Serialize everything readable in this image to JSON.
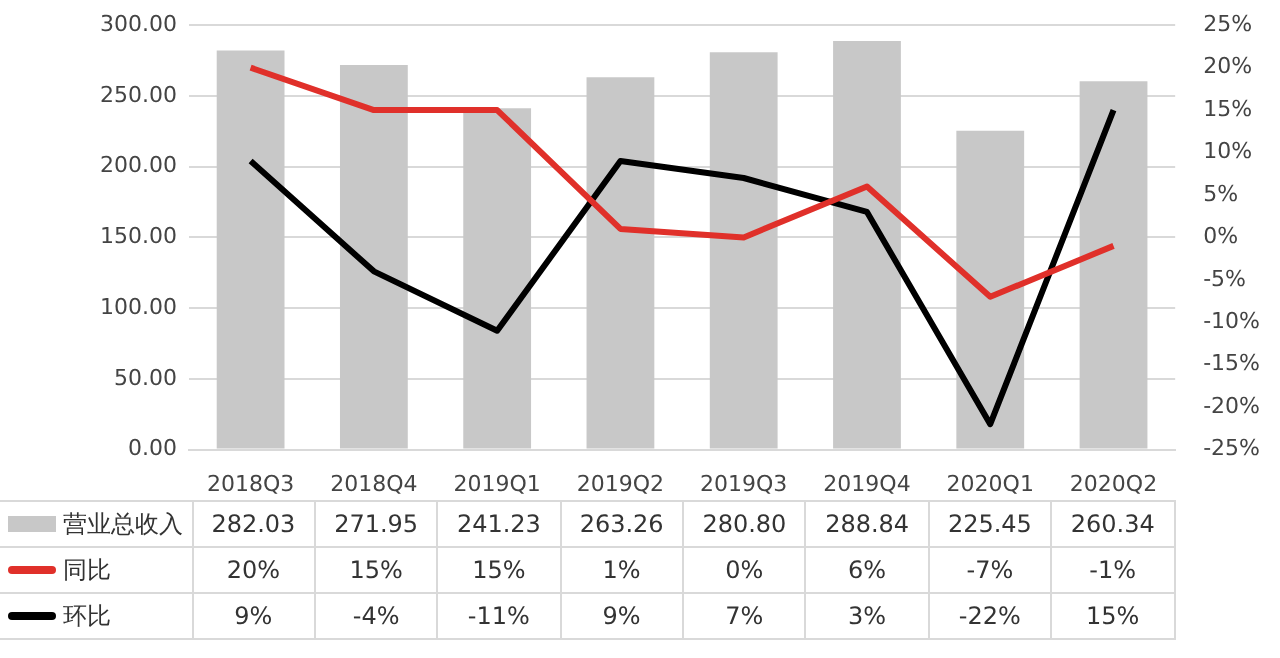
{
  "chart_data": {
    "type": "bar",
    "categories": [
      "2018Q3",
      "2018Q4",
      "2019Q1",
      "2019Q2",
      "2019Q3",
      "2019Q4",
      "2020Q1",
      "2020Q2"
    ],
    "series": [
      {
        "name": "营业总收入",
        "color": "#c8c8c8",
        "values": [
          282.03,
          271.95,
          241.23,
          263.26,
          280.8,
          288.84,
          225.45,
          260.34
        ],
        "value_labels": [
          "282.03",
          "271.95",
          "241.23",
          "263.26",
          "280.80",
          "288.84",
          "225.45",
          "260.34"
        ]
      },
      {
        "name": "同比",
        "type": "line",
        "axis": "y2",
        "color": "#e0302a",
        "values": [
          20,
          15,
          15,
          1,
          0,
          6,
          -7,
          -1
        ],
        "value_labels": [
          "20%",
          "15%",
          "15%",
          "1%",
          "0%",
          "6%",
          "-7%",
          "-1%"
        ]
      },
      {
        "name": "环比",
        "type": "line",
        "axis": "y2",
        "color": "#000000",
        "values": [
          9,
          -4,
          -11,
          9,
          7,
          3,
          -22,
          15
        ],
        "value_labels": [
          "9%",
          "-4%",
          "-11%",
          "9%",
          "7%",
          "3%",
          "-22%",
          "15%"
        ]
      }
    ],
    "ylim": [
      0,
      300
    ],
    "yticks": [
      {
        "value": 0,
        "label": "0.00"
      },
      {
        "value": 50,
        "label": "50.00"
      },
      {
        "value": 100,
        "label": "100.00"
      },
      {
        "value": 150,
        "label": "150.00"
      },
      {
        "value": 200,
        "label": "200.00"
      },
      {
        "value": 250,
        "label": "250.00"
      },
      {
        "value": 300,
        "label": "300.00"
      }
    ],
    "y2lim": [
      -25,
      25
    ],
    "y2ticks": [
      {
        "value": -25,
        "label": "-25%"
      },
      {
        "value": -20,
        "label": "-20%"
      },
      {
        "value": -15,
        "label": "-15%"
      },
      {
        "value": -10,
        "label": "-10%"
      },
      {
        "value": -5,
        "label": "-5%"
      },
      {
        "value": 0,
        "label": "0%"
      },
      {
        "value": 5,
        "label": "5%"
      },
      {
        "value": 10,
        "label": "10%"
      },
      {
        "value": 15,
        "label": "15%"
      },
      {
        "value": 20,
        "label": "20%"
      },
      {
        "value": 25,
        "label": "25%"
      }
    ],
    "grid": "y",
    "legend": "bottom",
    "marker": "none",
    "line_style": "solid"
  }
}
